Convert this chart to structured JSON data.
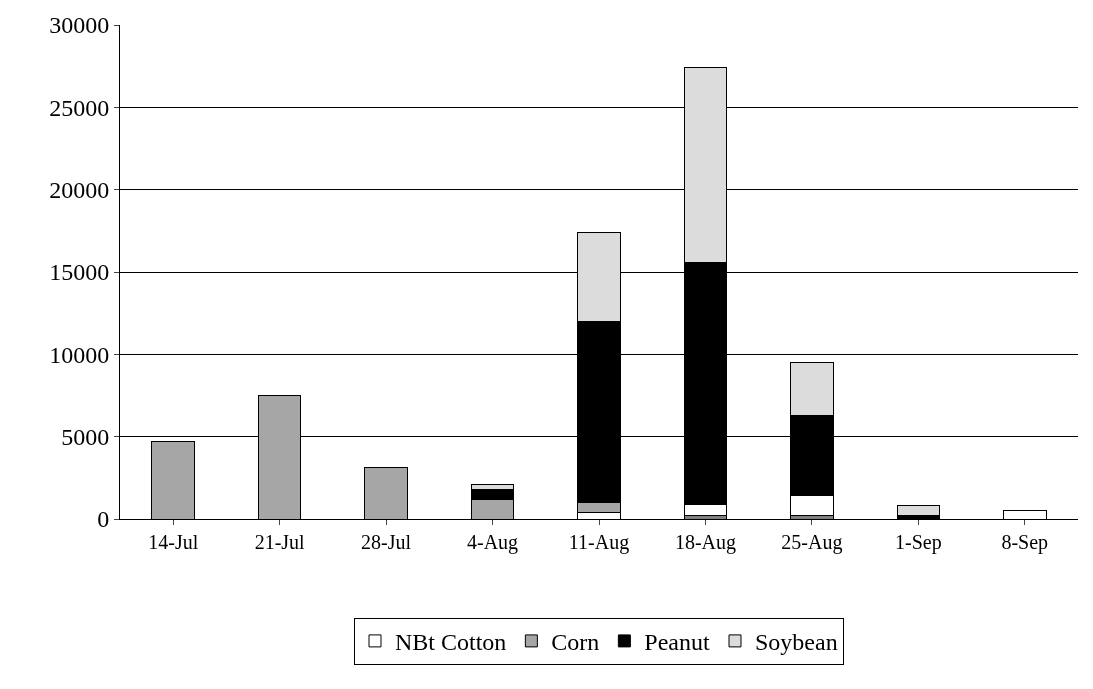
{
  "chart_data": {
    "type": "bar",
    "stacked": true,
    "categories": [
      "14-Jul",
      "21-Jul",
      "28-Jul",
      "4-Aug",
      "11-Aug",
      "18-Aug",
      "25-Aug",
      "1-Sep",
      "8-Sep"
    ],
    "series": [
      {
        "color": "#808080",
        "values": [
          0,
          0,
          0,
          0,
          null,
          200,
          200,
          0,
          null
        ]
      },
      {
        "name": "NBt Cotton",
        "color": "#ffffff",
        "values": [
          0,
          0,
          0,
          0,
          400,
          700,
          1200,
          0,
          500
        ]
      },
      {
        "name": "Corn",
        "color": "#a6a6a6",
        "values": [
          4700,
          7500,
          3100,
          1200,
          600,
          0,
          0,
          0,
          0
        ]
      },
      {
        "name": "Peanut",
        "color": "#000000",
        "values": [
          0,
          0,
          0,
          600,
          11000,
          14700,
          4900,
          200,
          0
        ]
      },
      {
        "name": "Soybean",
        "color": "#dcdcdc",
        "values": [
          0,
          0,
          0,
          300,
          5400,
          11800,
          3200,
          600,
          0
        ]
      }
    ],
    "ylim": [
      0,
      30000
    ],
    "yticks": [
      0,
      5000,
      10000,
      15000,
      20000,
      25000,
      30000
    ],
    "grid": "y",
    "legend": "bottom"
  }
}
